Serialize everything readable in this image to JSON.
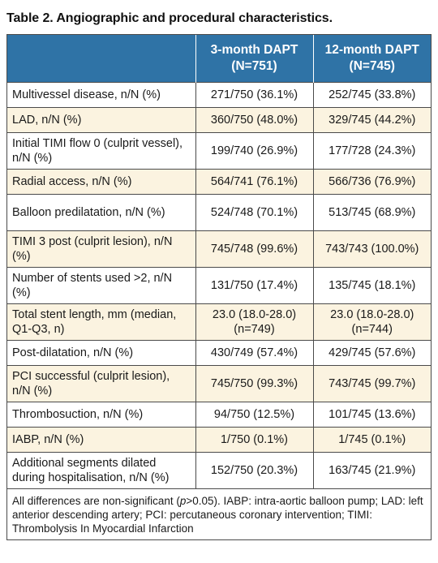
{
  "title": "Table 2. Angiographic and procedural characteristics.",
  "header": {
    "col1": "",
    "col2_line1": "3-month DAPT",
    "col2_line2": "(N=751)",
    "col3_line1": "12-month DAPT",
    "col3_line2": "(N=745)"
  },
  "rows": [
    {
      "label": "Multivessel disease, n/N (%)",
      "a": "271/750 (36.1%)",
      "b": "252/745 (33.8%)"
    },
    {
      "label": "LAD, n/N (%)",
      "a": "360/750 (48.0%)",
      "b": "329/745 (44.2%)"
    },
    {
      "label": "Initial TIMI flow 0 (culprit vessel), n/N (%)",
      "a": "199/740 (26.9%)",
      "b": "177/728 (24.3%)"
    },
    {
      "label": "Radial access, n/N (%)",
      "a": "564/741 (76.1%)",
      "b": "566/736 (76.9%)"
    },
    {
      "label": "Balloon predilatation, n/N (%)",
      "a": "524/748 (70.1%)",
      "b": "513/745 (68.9%)"
    },
    {
      "label": "TIMI 3 post (culprit lesion), n/N (%)",
      "a": "745/748 (99.6%)",
      "b": "743/743 (100.0%)"
    },
    {
      "label": "Number of stents used >2, n/N (%)",
      "a": "131/750 (17.4%)",
      "b": "135/745 (18.1%)"
    },
    {
      "label": "Total stent length, mm (median, Q1-Q3, n)",
      "a": "23.0 (18.0-28.0) (n=749)",
      "b": "23.0 (18.0-28.0) (n=744)"
    },
    {
      "label": "Post-dilatation, n/N (%)",
      "a": "430/749 (57.4%)",
      "b": "429/745 (57.6%)"
    },
    {
      "label": "PCI successful (culprit lesion), n/N (%)",
      "a": "745/750 (99.3%)",
      "b": "743/745 (99.7%)"
    },
    {
      "label": "Thrombosuction, n/N (%)",
      "a": "94/750 (12.5%)",
      "b": "101/745 (13.6%)"
    },
    {
      "label": "IABP, n/N (%)",
      "a": "1/750 (0.1%)",
      "b": "1/745 (0.1%)"
    },
    {
      "label": "Additional segments dilated during hospitalisation, n/N (%)",
      "a": "152/750 (20.3%)",
      "b": "163/745 (21.9%)"
    }
  ],
  "footnote": {
    "pre": "All differences are non-significant (",
    "p": "p",
    "post": ">0.05). IABP: intra-aortic balloon pump; LAD: left anterior descending artery; PCI: percutaneous coronary intervention; TIMI: Thrombolysis In Myocardial Infarction"
  }
}
